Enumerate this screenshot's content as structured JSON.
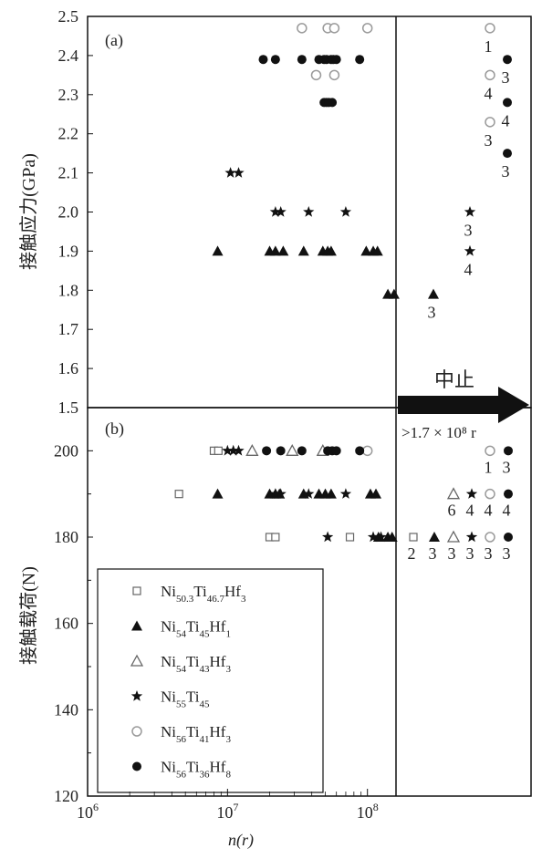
{
  "chart_data": [
    {
      "panel": "(a)",
      "type": "scatter",
      "ylabel": "接触应力(GPa)",
      "ylim": [
        1.5,
        2.5
      ],
      "yticks": [
        "1.5",
        "1.6",
        "1.7",
        "1.8",
        "1.9",
        "2.0",
        "2.1",
        "2.2",
        "2.3",
        "2.4",
        "2.5"
      ],
      "xscale": "log",
      "xlim": [
        1000000,
        160000000
      ],
      "series": [
        {
          "name": "Ni54Ti45Hf1",
          "marker": "filled-triangle",
          "x": [
            8500000,
            20000000,
            22000000,
            25000000,
            35000000,
            48000000,
            52000000,
            55000000,
            98000000,
            110000000,
            118000000,
            140000000,
            155000000
          ],
          "y": [
            1.9,
            1.9,
            1.9,
            1.9,
            1.9,
            1.9,
            1.9,
            1.9,
            1.9,
            1.9,
            1.9,
            1.79,
            1.79
          ]
        },
        {
          "name": "Ni55Ti45",
          "marker": "star",
          "x": [
            10500000,
            12000000,
            22000000,
            24000000,
            38000000,
            70000000
          ],
          "y": [
            2.1,
            2.1,
            2.0,
            2.0,
            2.0,
            2.0
          ]
        },
        {
          "name": "Ni56Ti41Hf3",
          "marker": "open-circle",
          "x": [
            34000000,
            52000000,
            58000000,
            100000000,
            43000000,
            58000000
          ],
          "y": [
            2.47,
            2.47,
            2.47,
            2.47,
            2.35,
            2.35
          ]
        },
        {
          "name": "Ni56Ti36Hf8",
          "marker": "filled-circle",
          "x": [
            18000000,
            22000000,
            34000000,
            45000000,
            49000000,
            51000000,
            55000000,
            57000000,
            60000000,
            88000000,
            49000000,
            51000000,
            53000000,
            56000000
          ],
          "y": [
            2.39,
            2.39,
            2.39,
            2.39,
            2.39,
            2.39,
            2.39,
            2.39,
            2.39,
            2.39,
            2.28,
            2.28,
            2.28,
            2.28
          ]
        }
      ],
      "suspended": [
        {
          "marker": "open-circle",
          "y": 2.47,
          "count": "1"
        },
        {
          "marker": "open-circle",
          "y": 2.35,
          "count": "4"
        },
        {
          "marker": "open-circle",
          "y": 2.23,
          "count": "3"
        },
        {
          "marker": "filled-circle",
          "y": 2.39,
          "count": "3"
        },
        {
          "marker": "filled-circle",
          "y": 2.28,
          "count": "4"
        },
        {
          "marker": "filled-circle",
          "y": 2.15,
          "count": "3"
        },
        {
          "marker": "star",
          "y": 2.0,
          "count": "3"
        },
        {
          "marker": "star",
          "y": 1.9,
          "count": "4"
        },
        {
          "marker": "filled-triangle",
          "y": 1.79,
          "count": "3"
        }
      ]
    },
    {
      "panel": "(b)",
      "type": "scatter",
      "ylabel": "接触载荷(N)",
      "ylim": [
        120,
        210
      ],
      "yticks": [
        "120",
        "140",
        "160",
        "180",
        "200"
      ],
      "xscale": "log",
      "xlim": [
        1000000,
        160000000
      ],
      "xlabel": "n(r)",
      "xticks": [
        "10^6",
        "10^7",
        "10^8"
      ],
      "series": [
        {
          "name": "Ni50.3Ti46.7Hf3",
          "marker": "open-square",
          "x": [
            8000000,
            8600000,
            4500000,
            20000000,
            22000000,
            75000000
          ],
          "y": [
            200,
            200,
            190,
            180,
            180,
            180
          ]
        },
        {
          "name": "Ni54Ti45Hf1",
          "marker": "filled-triangle",
          "x": [
            8500000,
            20000000,
            22000000,
            23500000,
            35000000,
            45000000,
            50000000,
            55000000,
            105000000,
            115000000,
            120000000,
            140000000,
            150000000
          ],
          "y": [
            190,
            190,
            190,
            190,
            190,
            190,
            190,
            190,
            190,
            190,
            180,
            180,
            180
          ]
        },
        {
          "name": "Ni54Ti43Hf3",
          "marker": "open-triangle",
          "x": [
            15000000,
            29000000,
            48000000
          ],
          "y": [
            200,
            200,
            200
          ]
        },
        {
          "name": "Ni55Ti45",
          "marker": "star",
          "x": [
            10000000,
            11000000,
            12000000,
            22000000,
            24000000,
            38000000,
            70000000,
            52000000,
            110000000,
            125000000
          ],
          "y": [
            200,
            200,
            200,
            190,
            190,
            190,
            190,
            180,
            180,
            180
          ]
        },
        {
          "name": "Ni56Ti41Hf3",
          "marker": "open-circle",
          "x": [
            100000000
          ],
          "y": [
            200
          ]
        },
        {
          "name": "Ni56Ti36Hf8",
          "marker": "filled-circle",
          "x": [
            19000000,
            24000000,
            34000000,
            52000000,
            56000000,
            60000000,
            88000000
          ],
          "y": [
            200,
            200,
            200,
            200,
            200,
            200,
            200
          ]
        }
      ],
      "suspended": [
        {
          "marker": "open-circle",
          "y": 200,
          "count": "1"
        },
        {
          "marker": "filled-circle",
          "y": 200,
          "count": "3"
        },
        {
          "marker": "open-triangle",
          "y": 190,
          "count": "6"
        },
        {
          "marker": "star",
          "y": 190,
          "count": "4"
        },
        {
          "marker": "open-circle",
          "y": 190,
          "count": "4"
        },
        {
          "marker": "filled-circle",
          "y": 190,
          "count": "4"
        },
        {
          "marker": "open-square",
          "y": 180,
          "count": "2"
        },
        {
          "marker": "filled-triangle",
          "y": 180,
          "count": "3"
        },
        {
          "marker": "open-triangle",
          "y": 180,
          "count": "3"
        },
        {
          "marker": "star",
          "y": 180,
          "count": "3"
        },
        {
          "marker": "open-circle",
          "y": 180,
          "count": "3"
        },
        {
          "marker": "filled-circle",
          "y": 180,
          "count": "3"
        }
      ]
    }
  ],
  "suspension": {
    "label": "中止",
    "threshold": ">1.7 × 10⁸ r"
  },
  "legend": {
    "placement": "bottom-left",
    "entries": [
      {
        "marker": "open-square",
        "base": [
          "Ni",
          "Ti",
          "Hf"
        ],
        "subs": [
          "50.3",
          "46.7",
          "3"
        ]
      },
      {
        "marker": "filled-triangle",
        "base": [
          "Ni",
          "Ti",
          "Hf"
        ],
        "subs": [
          "54",
          "45",
          "1"
        ]
      },
      {
        "marker": "open-triangle",
        "base": [
          "Ni",
          "Ti",
          "Hf"
        ],
        "subs": [
          "54",
          "43",
          "3"
        ]
      },
      {
        "marker": "star",
        "base": [
          "Ni",
          "Ti"
        ],
        "subs": [
          "55",
          "45"
        ]
      },
      {
        "marker": "open-circle",
        "base": [
          "Ni",
          "Ti",
          "Hf"
        ],
        "subs": [
          "56",
          "41",
          "3"
        ]
      },
      {
        "marker": "filled-circle",
        "base": [
          "Ni",
          "Ti",
          "Hf"
        ],
        "subs": [
          "56",
          "36",
          "8"
        ]
      }
    ]
  },
  "colors": {
    "filled": "#111111",
    "open": "#9a9a9a",
    "square": "#666666",
    "axis": "#111111"
  }
}
